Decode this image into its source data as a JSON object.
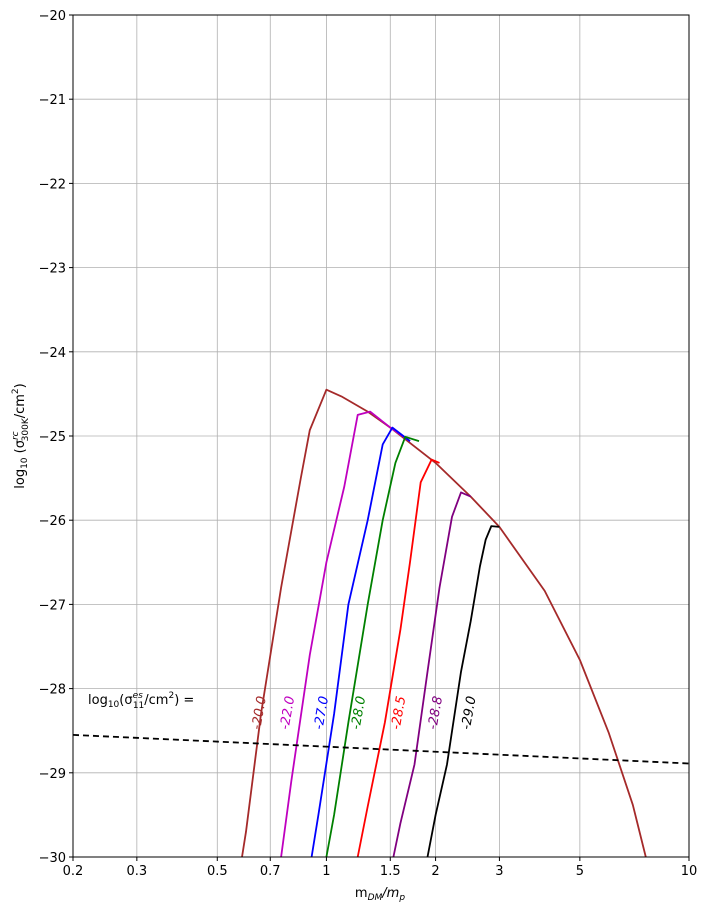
{
  "chart_data": {
    "type": "line",
    "xscale": "log",
    "xlim": [
      0.2,
      10
    ],
    "ylim": [
      -30,
      -20
    ],
    "grid": true,
    "xticks": [
      {
        "value": 0.2,
        "label": "0.2"
      },
      {
        "value": 0.3,
        "label": "0.3"
      },
      {
        "value": 0.5,
        "label": "0.5"
      },
      {
        "value": 0.7,
        "label": "0.7"
      },
      {
        "value": 1,
        "label": "1"
      },
      {
        "value": 1.5,
        "label": "1.5"
      },
      {
        "value": 2,
        "label": "2"
      },
      {
        "value": 3,
        "label": "3"
      },
      {
        "value": 5,
        "label": "5"
      },
      {
        "value": 10,
        "label": "10"
      }
    ],
    "yticks": [
      {
        "value": -20,
        "label": "−20"
      },
      {
        "value": -21,
        "label": "−21"
      },
      {
        "value": -22,
        "label": "−22"
      },
      {
        "value": -23,
        "label": "−23"
      },
      {
        "value": -24,
        "label": "−24"
      },
      {
        "value": -25,
        "label": "−25"
      },
      {
        "value": -26,
        "label": "−26"
      },
      {
        "value": -27,
        "label": "−27"
      },
      {
        "value": -28,
        "label": "−28"
      },
      {
        "value": -29,
        "label": "−29"
      },
      {
        "value": -30,
        "label": "−30"
      }
    ],
    "xlabel": {
      "main": "m",
      "sub": "DM",
      "tail": "/m",
      "tail_sub": "p"
    },
    "ylabel": {
      "prefix": "log",
      "prefix_sub": "10",
      "open": " (σ",
      "sup": "rc",
      "sub": "300K",
      "tail": "/cm",
      "tail_sup": "2",
      "close": ")"
    },
    "annotation": {
      "prefix": "log",
      "prefix_sub": "10",
      "open": "(σ",
      "sup": "es",
      "sub": "11",
      "tail": "/cm",
      "tail_sup": "2",
      "close": ") ="
    },
    "series": [
      {
        "label": "-20.0",
        "color": "#a52a2a",
        "label_x": 0.66,
        "label_y": -28.1,
        "points": [
          [
            0.585,
            -30
          ],
          [
            0.6,
            -29.7
          ],
          [
            0.66,
            -28.3
          ],
          [
            0.75,
            -26.8
          ],
          [
            0.85,
            -25.5
          ],
          [
            0.9,
            -24.93
          ],
          [
            1.0,
            -24.45
          ],
          [
            1.1,
            -24.53
          ],
          [
            1.3,
            -24.71
          ],
          [
            1.5,
            -24.9
          ],
          [
            2.0,
            -25.32
          ],
          [
            2.5,
            -25.72
          ],
          [
            3.0,
            -26.08
          ],
          [
            4.0,
            -26.84
          ],
          [
            5.0,
            -27.66
          ],
          [
            6.0,
            -28.52
          ],
          [
            7.0,
            -29.38
          ],
          [
            7.6,
            -30.0
          ]
        ]
      },
      {
        "label": "-22.0",
        "color": "#bf00bf",
        "label_x": 0.79,
        "label_y": -28.1,
        "points": [
          [
            0.75,
            -30
          ],
          [
            0.8,
            -29.1
          ],
          [
            0.9,
            -27.6
          ],
          [
            1.0,
            -26.5
          ],
          [
            1.12,
            -25.6
          ],
          [
            1.22,
            -24.75
          ],
          [
            1.32,
            -24.71
          ],
          [
            1.5,
            -24.9
          ],
          [
            1.7,
            -25.06
          ]
        ]
      },
      {
        "label": "-27.0",
        "color": "#0000ff",
        "label_x": 0.98,
        "label_y": -28.1,
        "points": [
          [
            0.91,
            -30
          ],
          [
            0.95,
            -29.5
          ],
          [
            1.05,
            -28.3
          ],
          [
            1.15,
            -27.0
          ],
          [
            1.3,
            -26.0
          ],
          [
            1.43,
            -25.1
          ],
          [
            1.52,
            -24.9
          ],
          [
            1.7,
            -25.06
          ]
        ]
      },
      {
        "label": "-28.0",
        "color": "#008000",
        "label_x": 1.24,
        "label_y": -28.1,
        "points": [
          [
            1.0,
            -30
          ],
          [
            1.05,
            -29.5
          ],
          [
            1.15,
            -28.4
          ],
          [
            1.3,
            -27.0
          ],
          [
            1.43,
            -26.0
          ],
          [
            1.55,
            -25.32
          ],
          [
            1.65,
            -25.01
          ],
          [
            1.8,
            -25.06
          ]
        ]
      },
      {
        "label": "-28.5",
        "color": "#ff0000",
        "label_x": 1.6,
        "label_y": -28.1,
        "points": [
          [
            1.22,
            -30
          ],
          [
            1.3,
            -29.4
          ],
          [
            1.45,
            -28.4
          ],
          [
            1.6,
            -27.3
          ],
          [
            1.7,
            -26.5
          ],
          [
            1.82,
            -25.55
          ],
          [
            1.95,
            -25.28
          ],
          [
            2.05,
            -25.32
          ]
        ]
      },
      {
        "label": "-28.8",
        "color": "#800080",
        "label_x": 2.02,
        "label_y": -28.1,
        "points": [
          [
            1.53,
            -30
          ],
          [
            1.6,
            -29.6
          ],
          [
            1.75,
            -28.9
          ],
          [
            1.9,
            -27.8
          ],
          [
            2.05,
            -26.8
          ],
          [
            2.22,
            -25.96
          ],
          [
            2.35,
            -25.67
          ],
          [
            2.5,
            -25.72
          ]
        ]
      },
      {
        "label": "-29.0",
        "color": "#000000",
        "label_x": 2.5,
        "label_y": -28.1,
        "points": [
          [
            1.9,
            -30
          ],
          [
            2.0,
            -29.5
          ],
          [
            2.15,
            -28.9
          ],
          [
            2.35,
            -27.8
          ],
          [
            2.5,
            -27.2
          ],
          [
            2.65,
            -26.55
          ],
          [
            2.75,
            -26.23
          ],
          [
            2.85,
            -26.07
          ],
          [
            3.0,
            -26.08
          ]
        ]
      },
      {
        "label": "",
        "color": "#000000",
        "dashed": true,
        "points": [
          [
            0.2,
            -28.55
          ],
          [
            10,
            -28.89
          ]
        ]
      }
    ]
  }
}
